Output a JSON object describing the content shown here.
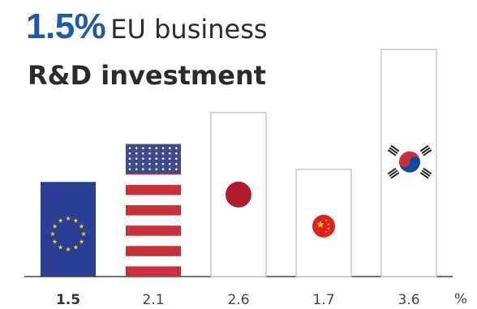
{
  "header": {
    "headline_value": "1.5%",
    "headline_text": "EU business",
    "subhead": "R&D investment"
  },
  "chart_data": {
    "type": "bar",
    "title": "1.5% EU business R&D investment",
    "categories": [
      "EU",
      "United States",
      "Japan",
      "China",
      "South Korea"
    ],
    "values": [
      1.5,
      2.1,
      2.6,
      1.7,
      3.6
    ],
    "tick_labels": [
      "1.5",
      "2.1",
      "2.6",
      "1.7",
      "3.6"
    ],
    "unit": "%",
    "ylim": [
      0,
      3.6
    ],
    "grid": false,
    "legend": "none",
    "colors": {
      "eu_blue": "#2a3e95",
      "eu_star": "#f0d200",
      "us_red": "#c8303a",
      "us_blue": "#3d4a8f",
      "japan_red": "#b01c2e",
      "china_red": "#e02020",
      "china_star": "#f5d000",
      "korea_red": "#cd2e3a",
      "korea_blue": "#0a4aa0",
      "outline": "#c9c9c9",
      "axis": "#444444"
    }
  }
}
